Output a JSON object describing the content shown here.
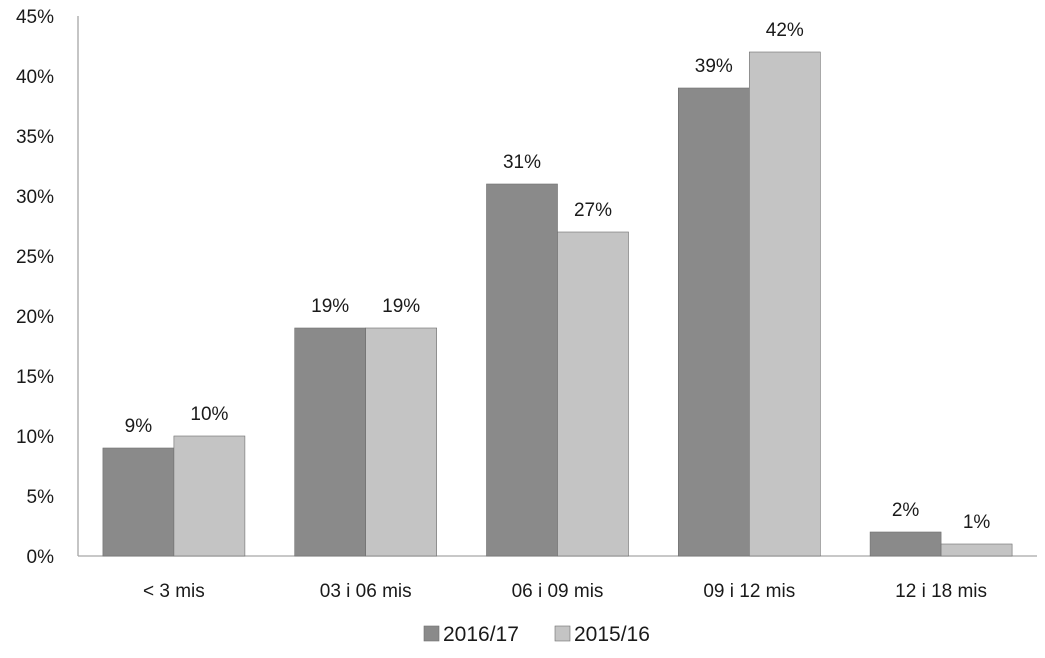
{
  "chart_data": {
    "type": "bar",
    "title": "",
    "xlabel": "",
    "ylabel": "",
    "ylim": [
      0,
      45
    ],
    "y_ticks": [
      "0%",
      "5%",
      "10%",
      "15%",
      "20%",
      "25%",
      "30%",
      "35%",
      "40%",
      "45%"
    ],
    "y_tick_values": [
      0,
      5,
      10,
      15,
      20,
      25,
      30,
      35,
      40,
      45
    ],
    "grid": false,
    "legend_position": "bottom",
    "categories": [
      "< 3 mis",
      "03 i 06 mis",
      "06 i 09 mis",
      "09 i 12 mis",
      "12 i 18 mis"
    ],
    "series": [
      {
        "name": "2016/17",
        "color": "#8a8a8a",
        "values": [
          9,
          19,
          31,
          39,
          2
        ],
        "labels": [
          "9%",
          "19%",
          "31%",
          "39%",
          "2%"
        ]
      },
      {
        "name": "2015/16",
        "color": "#c4c4c4",
        "values": [
          10,
          19,
          27,
          42,
          1
        ],
        "labels": [
          "10%",
          "19%",
          "27%",
          "42%",
          "1%"
        ]
      }
    ]
  }
}
